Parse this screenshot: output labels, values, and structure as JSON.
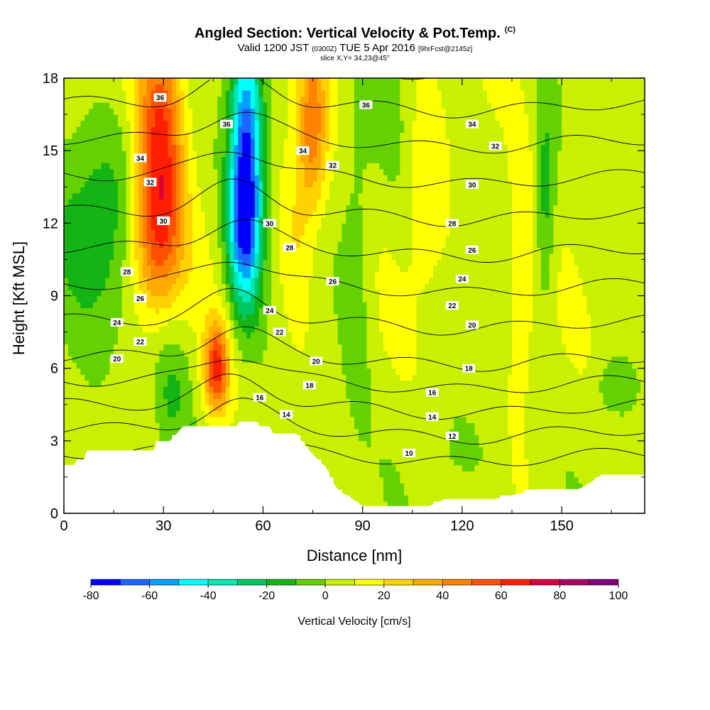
{
  "title": {
    "main": "Angled Section: Vertical Velocity & Pot.Temp.",
    "unit_tag": "(C)",
    "valid_prefix": "Valid 1200 JST",
    "valid_zulu": "(0300Z)",
    "valid_date": "TUE 5 Apr 2016",
    "forecast": "[9hrFcst@2145z]",
    "slice": "slice X,Y= 34,23@45°"
  },
  "chart_data": {
    "type": "heatmap",
    "xlabel": "Distance [nm]",
    "ylabel": "Height [Kft MSL]",
    "xlim": [
      0,
      175
    ],
    "ylim": [
      0,
      18
    ],
    "x_ticks": [
      "0",
      "30",
      "60",
      "90",
      "120",
      "150"
    ],
    "y_ticks": [
      "0",
      "3",
      "6",
      "9",
      "12",
      "15",
      "18"
    ],
    "colorbar": {
      "label": "Vertical Velocity [cm/s]",
      "tick_labels": [
        "-80",
        "-60",
        "-40",
        "-20",
        "0",
        "20",
        "40",
        "60",
        "80",
        "100"
      ],
      "levels": [
        -80,
        -70,
        -60,
        -50,
        -40,
        -30,
        -20,
        -10,
        0,
        10,
        20,
        30,
        40,
        50,
        60,
        70,
        80,
        90,
        100
      ],
      "colors": [
        "#0000ff",
        "#1e64ff",
        "#00a0ff",
        "#00ffff",
        "#00e6b4",
        "#00c864",
        "#14b414",
        "#64d200",
        "#c8f000",
        "#ffff00",
        "#ffd200",
        "#ffaa00",
        "#ff8200",
        "#ff5000",
        "#ff1e00",
        "#d2003c",
        "#aa0064",
        "#7d007d"
      ]
    },
    "terrain_top_kft": [
      [
        0,
        2.0
      ],
      [
        3,
        2.0
      ],
      [
        4,
        2.2
      ],
      [
        6,
        2.2
      ],
      [
        7,
        2.6
      ],
      [
        12,
        2.6
      ],
      [
        27,
        2.6
      ],
      [
        28,
        2.9
      ],
      [
        32,
        3.0
      ],
      [
        34,
        3.3
      ],
      [
        36,
        3.6
      ],
      [
        52,
        3.6
      ],
      [
        53,
        3.8
      ],
      [
        58,
        3.8
      ],
      [
        59,
        3.6
      ],
      [
        62,
        3.6
      ],
      [
        63,
        3.3
      ],
      [
        70,
        3.3
      ],
      [
        72,
        2.9
      ],
      [
        74,
        2.6
      ],
      [
        76,
        2.3
      ],
      [
        79,
        1.9
      ],
      [
        81,
        1.3
      ],
      [
        83,
        0.9
      ],
      [
        86,
        0.7
      ],
      [
        88,
        0.5
      ],
      [
        90,
        0.3
      ],
      [
        110,
        0.3
      ],
      [
        115,
        0.6
      ],
      [
        130,
        0.6
      ],
      [
        143,
        1.0
      ],
      [
        155,
        1.0
      ],
      [
        158,
        1.2
      ],
      [
        162,
        1.6
      ],
      [
        175,
        1.6
      ]
    ],
    "vv_features": [
      {
        "x": 29,
        "y": 15.0,
        "sx": 5,
        "sy": 3.6,
        "value": 60
      },
      {
        "x": 27,
        "y": 11.0,
        "sx": 6,
        "sy": 2.0,
        "value": 30
      },
      {
        "x": 46,
        "y": 6.0,
        "sx": 2.6,
        "sy": 1.3,
        "value": 58
      },
      {
        "x": 55,
        "y": 15.0,
        "sx": 3.4,
        "sy": 3.6,
        "value": -75
      },
      {
        "x": 54,
        "y": 11.5,
        "sx": 3.6,
        "sy": 2.2,
        "value": -42
      },
      {
        "x": 75,
        "y": 16.0,
        "sx": 3.0,
        "sy": 2.5,
        "value": 38
      },
      {
        "x": 70,
        "y": 11.5,
        "sx": 3.5,
        "sy": 3.0,
        "value": 15
      },
      {
        "x": 138,
        "y": 10.0,
        "sx": 3.0,
        "sy": 3.5,
        "value": 15
      },
      {
        "x": 109,
        "y": 14.0,
        "sx": 4.0,
        "sy": 3.5,
        "value": 12
      },
      {
        "x": 10,
        "y": 12.0,
        "sx": 12,
        "sy": 3.2,
        "value": -22
      },
      {
        "x": 32,
        "y": 5.0,
        "sx": 4,
        "sy": 2.0,
        "value": -18
      },
      {
        "x": 88,
        "y": 10.0,
        "sx": 3.5,
        "sy": 5.0,
        "value": -12
      },
      {
        "x": 145,
        "y": 13.0,
        "sx": 2.2,
        "sy": 3.0,
        "value": -22
      },
      {
        "x": 166,
        "y": 5.2,
        "sx": 4,
        "sy": 0.8,
        "value": -15
      },
      {
        "x": 120,
        "y": 2.5,
        "sx": 8,
        "sy": 1.2,
        "value": -8
      },
      {
        "x": 100,
        "y": 16.0,
        "sx": 5,
        "sy": 2.5,
        "value": -6
      }
    ],
    "theta_contours": {
      "levels": [
        10,
        12,
        14,
        16,
        18,
        20,
        22,
        24,
        26,
        28,
        30,
        32,
        34,
        36
      ],
      "labels": [
        {
          "text": "36",
          "x": 29,
          "y": 17.2
        },
        {
          "text": "36",
          "x": 49,
          "y": 16.1
        },
        {
          "text": "36",
          "x": 91,
          "y": 16.9
        },
        {
          "text": "34",
          "x": 23,
          "y": 14.7
        },
        {
          "text": "34",
          "x": 72,
          "y": 15.0
        },
        {
          "text": "34",
          "x": 123,
          "y": 16.1
        },
        {
          "text": "32",
          "x": 26,
          "y": 13.7
        },
        {
          "text": "32",
          "x": 81,
          "y": 14.4
        },
        {
          "text": "32",
          "x": 130,
          "y": 15.2
        },
        {
          "text": "30",
          "x": 30,
          "y": 12.1
        },
        {
          "text": "30",
          "x": 62,
          "y": 12.0
        },
        {
          "text": "30",
          "x": 123,
          "y": 13.6
        },
        {
          "text": "28",
          "x": 19,
          "y": 10.0
        },
        {
          "text": "28",
          "x": 68,
          "y": 11.0
        },
        {
          "text": "28",
          "x": 117,
          "y": 12.0
        },
        {
          "text": "26",
          "x": 23,
          "y": 8.9
        },
        {
          "text": "26",
          "x": 81,
          "y": 9.6
        },
        {
          "text": "26",
          "x": 123,
          "y": 10.9
        },
        {
          "text": "24",
          "x": 16,
          "y": 7.9
        },
        {
          "text": "24",
          "x": 62,
          "y": 8.4
        },
        {
          "text": "24",
          "x": 120,
          "y": 9.7
        },
        {
          "text": "22",
          "x": 23,
          "y": 7.1
        },
        {
          "text": "22",
          "x": 65,
          "y": 7.5
        },
        {
          "text": "22",
          "x": 117,
          "y": 8.6
        },
        {
          "text": "20",
          "x": 16,
          "y": 6.4
        },
        {
          "text": "20",
          "x": 76,
          "y": 6.3
        },
        {
          "text": "20",
          "x": 123,
          "y": 7.8
        },
        {
          "text": "18",
          "x": 74,
          "y": 5.3
        },
        {
          "text": "18",
          "x": 122,
          "y": 6.0
        },
        {
          "text": "16",
          "x": 59,
          "y": 4.8
        },
        {
          "text": "16",
          "x": 111,
          "y": 5.0
        },
        {
          "text": "14",
          "x": 67,
          "y": 4.1
        },
        {
          "text": "14",
          "x": 111,
          "y": 4.0
        },
        {
          "text": "12",
          "x": 117,
          "y": 3.2
        },
        {
          "text": "10",
          "x": 104,
          "y": 2.5
        }
      ]
    }
  }
}
